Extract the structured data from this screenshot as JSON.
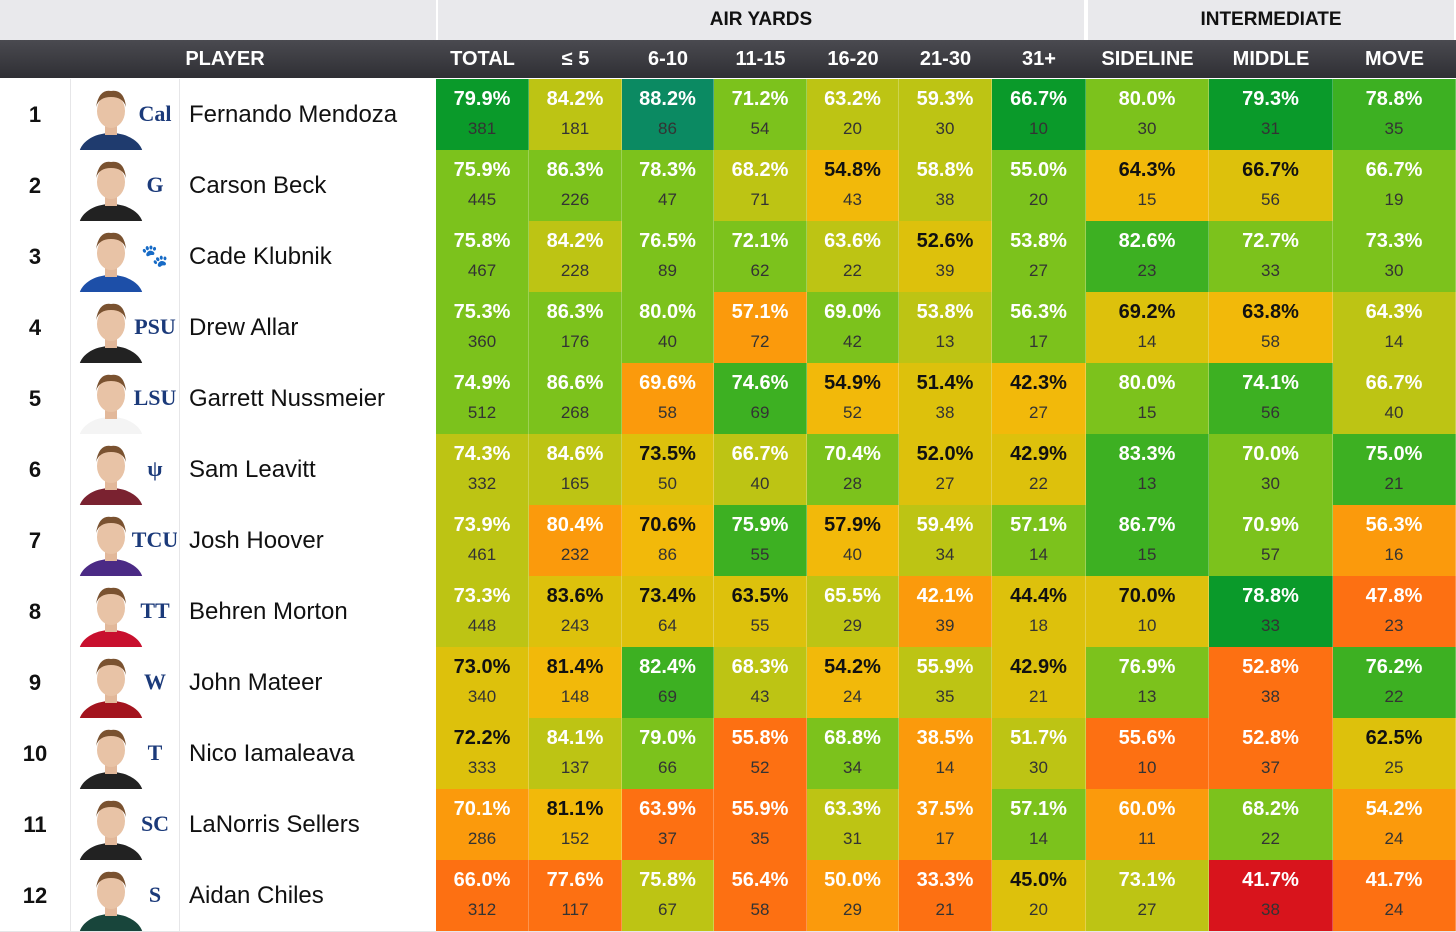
{
  "groups": [
    {
      "label": "AIR YARDS",
      "start": 1,
      "end": 7
    },
    {
      "label": "INTERMEDIATE",
      "start": 8,
      "end": 10
    }
  ],
  "columns": [
    "PLAYER",
    "TOTAL",
    "≤ 5",
    "6-10",
    "11-15",
    "16-20",
    "21-30",
    "31+",
    "SIDELINE",
    "MIDDLE",
    "MOVE"
  ],
  "colors": {
    "dark_green": "#0a9a2a",
    "teal": "#0b8a62",
    "green": "#3db022",
    "light_green": "#7cc21c",
    "yellow_green": "#bdc414",
    "yellow": "#ddc10c",
    "gold": "#f2b90a",
    "orange": "#fb9a0c",
    "dark_orange": "#fd7012",
    "red": "#d8141c"
  },
  "players": [
    {
      "rank": "1",
      "name": "Fernando Mendoza",
      "logo": "cal-logo",
      "logo_text": "Cal",
      "jersey": "#1f3b6e",
      "cells": [
        [
          "79.9%",
          "381",
          "dark_green"
        ],
        [
          "84.2%",
          "181",
          "yellow_green"
        ],
        [
          "88.2%",
          "86",
          "teal"
        ],
        [
          "71.2%",
          "54",
          "light_green"
        ],
        [
          "63.2%",
          "20",
          "yellow_green"
        ],
        [
          "59.3%",
          "30",
          "yellow_green"
        ],
        [
          "66.7%",
          "10",
          "dark_green"
        ],
        [
          "80.0%",
          "30",
          "light_green"
        ],
        [
          "79.3%",
          "31",
          "dark_green"
        ],
        [
          "78.8%",
          "35",
          "green"
        ]
      ]
    },
    {
      "rank": "2",
      "name": "Carson Beck",
      "logo": "georgia-logo",
      "logo_text": "G",
      "jersey": "#222",
      "cells": [
        [
          "75.9%",
          "445",
          "light_green"
        ],
        [
          "86.3%",
          "226",
          "light_green"
        ],
        [
          "78.3%",
          "47",
          "light_green"
        ],
        [
          "68.2%",
          "71",
          "yellow_green"
        ],
        [
          "54.8%",
          "43",
          "gold"
        ],
        [
          "58.8%",
          "38",
          "yellow_green"
        ],
        [
          "55.0%",
          "20",
          "light_green"
        ],
        [
          "64.3%",
          "15",
          "gold"
        ],
        [
          "66.7%",
          "56",
          "yellow"
        ],
        [
          "66.7%",
          "19",
          "light_green"
        ]
      ]
    },
    {
      "rank": "3",
      "name": "Cade Klubnik",
      "logo": "clemson-logo",
      "logo_text": "🐾",
      "jersey": "#1d4fa8",
      "cells": [
        [
          "75.8%",
          "467",
          "light_green"
        ],
        [
          "84.2%",
          "228",
          "yellow_green"
        ],
        [
          "76.5%",
          "89",
          "light_green"
        ],
        [
          "72.1%",
          "62",
          "light_green"
        ],
        [
          "63.6%",
          "22",
          "yellow_green"
        ],
        [
          "52.6%",
          "39",
          "yellow"
        ],
        [
          "53.8%",
          "27",
          "light_green"
        ],
        [
          "82.6%",
          "23",
          "green"
        ],
        [
          "72.7%",
          "33",
          "light_green"
        ],
        [
          "73.3%",
          "30",
          "light_green"
        ]
      ]
    },
    {
      "rank": "4",
      "name": "Drew Allar",
      "logo": "pennstate-logo",
      "logo_text": "PSU",
      "jersey": "#222",
      "cells": [
        [
          "75.3%",
          "360",
          "light_green"
        ],
        [
          "86.3%",
          "176",
          "light_green"
        ],
        [
          "80.0%",
          "40",
          "light_green"
        ],
        [
          "57.1%",
          "72",
          "orange"
        ],
        [
          "69.0%",
          "42",
          "light_green"
        ],
        [
          "53.8%",
          "13",
          "yellow_green"
        ],
        [
          "56.3%",
          "17",
          "light_green"
        ],
        [
          "69.2%",
          "14",
          "yellow"
        ],
        [
          "63.8%",
          "58",
          "gold"
        ],
        [
          "64.3%",
          "14",
          "yellow_green"
        ]
      ]
    },
    {
      "rank": "5",
      "name": "Garrett Nussmeier",
      "logo": "lsu-logo",
      "logo_text": "LSU",
      "jersey": "#f4f4f4",
      "cells": [
        [
          "74.9%",
          "512",
          "light_green"
        ],
        [
          "86.6%",
          "268",
          "light_green"
        ],
        [
          "69.6%",
          "58",
          "orange"
        ],
        [
          "74.6%",
          "69",
          "green"
        ],
        [
          "54.9%",
          "52",
          "gold"
        ],
        [
          "51.4%",
          "38",
          "yellow"
        ],
        [
          "42.3%",
          "27",
          "gold"
        ],
        [
          "80.0%",
          "15",
          "light_green"
        ],
        [
          "74.1%",
          "56",
          "green"
        ],
        [
          "66.7%",
          "40",
          "yellow_green"
        ]
      ]
    },
    {
      "rank": "6",
      "name": "Sam Leavitt",
      "logo": "asu-logo",
      "logo_text": "ψ",
      "jersey": "#7a2230",
      "cells": [
        [
          "74.3%",
          "332",
          "yellow_green"
        ],
        [
          "84.6%",
          "165",
          "yellow_green"
        ],
        [
          "73.5%",
          "50",
          "yellow"
        ],
        [
          "66.7%",
          "40",
          "yellow_green"
        ],
        [
          "70.4%",
          "28",
          "light_green"
        ],
        [
          "52.0%",
          "27",
          "yellow"
        ],
        [
          "42.9%",
          "22",
          "yellow"
        ],
        [
          "83.3%",
          "13",
          "green"
        ],
        [
          "70.0%",
          "30",
          "light_green"
        ],
        [
          "75.0%",
          "21",
          "green"
        ]
      ]
    },
    {
      "rank": "7",
      "name": "Josh Hoover",
      "logo": "tcu-logo",
      "logo_text": "TCU",
      "jersey": "#4b2a85",
      "cells": [
        [
          "73.9%",
          "461",
          "yellow_green"
        ],
        [
          "80.4%",
          "232",
          "orange"
        ],
        [
          "70.6%",
          "86",
          "gold"
        ],
        [
          "75.9%",
          "55",
          "green"
        ],
        [
          "57.9%",
          "40",
          "gold"
        ],
        [
          "59.4%",
          "34",
          "yellow_green"
        ],
        [
          "57.1%",
          "14",
          "light_green"
        ],
        [
          "86.7%",
          "15",
          "green"
        ],
        [
          "70.9%",
          "57",
          "light_green"
        ],
        [
          "56.3%",
          "16",
          "orange"
        ]
      ]
    },
    {
      "rank": "8",
      "name": "Behren Morton",
      "logo": "texastech-logo",
      "logo_text": "TT",
      "jersey": "#c8102e",
      "cells": [
        [
          "73.3%",
          "448",
          "yellow_green"
        ],
        [
          "83.6%",
          "243",
          "yellow"
        ],
        [
          "73.4%",
          "64",
          "yellow"
        ],
        [
          "63.5%",
          "55",
          "yellow"
        ],
        [
          "65.5%",
          "29",
          "yellow_green"
        ],
        [
          "42.1%",
          "39",
          "orange"
        ],
        [
          "44.4%",
          "18",
          "yellow"
        ],
        [
          "70.0%",
          "10",
          "yellow"
        ],
        [
          "78.8%",
          "33",
          "dark_green"
        ],
        [
          "47.8%",
          "23",
          "dark_orange"
        ]
      ]
    },
    {
      "rank": "9",
      "name": "John Mateer",
      "logo": "wsu-logo",
      "logo_text": "W",
      "jersey": "#a3141e",
      "cells": [
        [
          "73.0%",
          "340",
          "yellow"
        ],
        [
          "81.4%",
          "148",
          "gold"
        ],
        [
          "82.4%",
          "69",
          "green"
        ],
        [
          "68.3%",
          "43",
          "yellow_green"
        ],
        [
          "54.2%",
          "24",
          "gold"
        ],
        [
          "55.9%",
          "35",
          "yellow_green"
        ],
        [
          "42.9%",
          "21",
          "yellow"
        ],
        [
          "76.9%",
          "13",
          "light_green"
        ],
        [
          "52.8%",
          "38",
          "dark_orange"
        ],
        [
          "76.2%",
          "22",
          "green"
        ]
      ]
    },
    {
      "rank": "10",
      "name": "Nico Iamaleava",
      "logo": "tennessee-logo",
      "logo_text": "T",
      "jersey": "#222",
      "cells": [
        [
          "72.2%",
          "333",
          "yellow"
        ],
        [
          "84.1%",
          "137",
          "yellow_green"
        ],
        [
          "79.0%",
          "66",
          "light_green"
        ],
        [
          "55.8%",
          "52",
          "dark_orange"
        ],
        [
          "68.8%",
          "34",
          "light_green"
        ],
        [
          "38.5%",
          "14",
          "orange"
        ],
        [
          "51.7%",
          "30",
          "yellow_green"
        ],
        [
          "55.6%",
          "10",
          "dark_orange"
        ],
        [
          "52.8%",
          "37",
          "dark_orange"
        ],
        [
          "62.5%",
          "25",
          "yellow"
        ]
      ]
    },
    {
      "rank": "11",
      "name": "LaNorris Sellers",
      "logo": "southcarolina-logo",
      "logo_text": "SC",
      "jersey": "#222",
      "cells": [
        [
          "70.1%",
          "286",
          "orange"
        ],
        [
          "81.1%",
          "152",
          "gold"
        ],
        [
          "63.9%",
          "37",
          "dark_orange"
        ],
        [
          "55.9%",
          "35",
          "dark_orange"
        ],
        [
          "63.3%",
          "31",
          "yellow_green"
        ],
        [
          "37.5%",
          "17",
          "orange"
        ],
        [
          "57.1%",
          "14",
          "light_green"
        ],
        [
          "60.0%",
          "11",
          "orange"
        ],
        [
          "68.2%",
          "22",
          "light_green"
        ],
        [
          "54.2%",
          "24",
          "orange"
        ]
      ]
    },
    {
      "rank": "12",
      "name": "Aidan Chiles",
      "logo": "michiganstate-logo",
      "logo_text": "S",
      "jersey": "#18453b",
      "cells": [
        [
          "66.0%",
          "312",
          "dark_orange"
        ],
        [
          "77.6%",
          "117",
          "dark_orange"
        ],
        [
          "75.8%",
          "67",
          "yellow_green"
        ],
        [
          "56.4%",
          "58",
          "dark_orange"
        ],
        [
          "50.0%",
          "29",
          "orange"
        ],
        [
          "33.3%",
          "21",
          "dark_orange"
        ],
        [
          "45.0%",
          "20",
          "yellow"
        ],
        [
          "73.1%",
          "27",
          "yellow_green"
        ],
        [
          "41.7%",
          "38",
          "red"
        ],
        [
          "41.7%",
          "24",
          "dark_orange"
        ]
      ]
    }
  ]
}
